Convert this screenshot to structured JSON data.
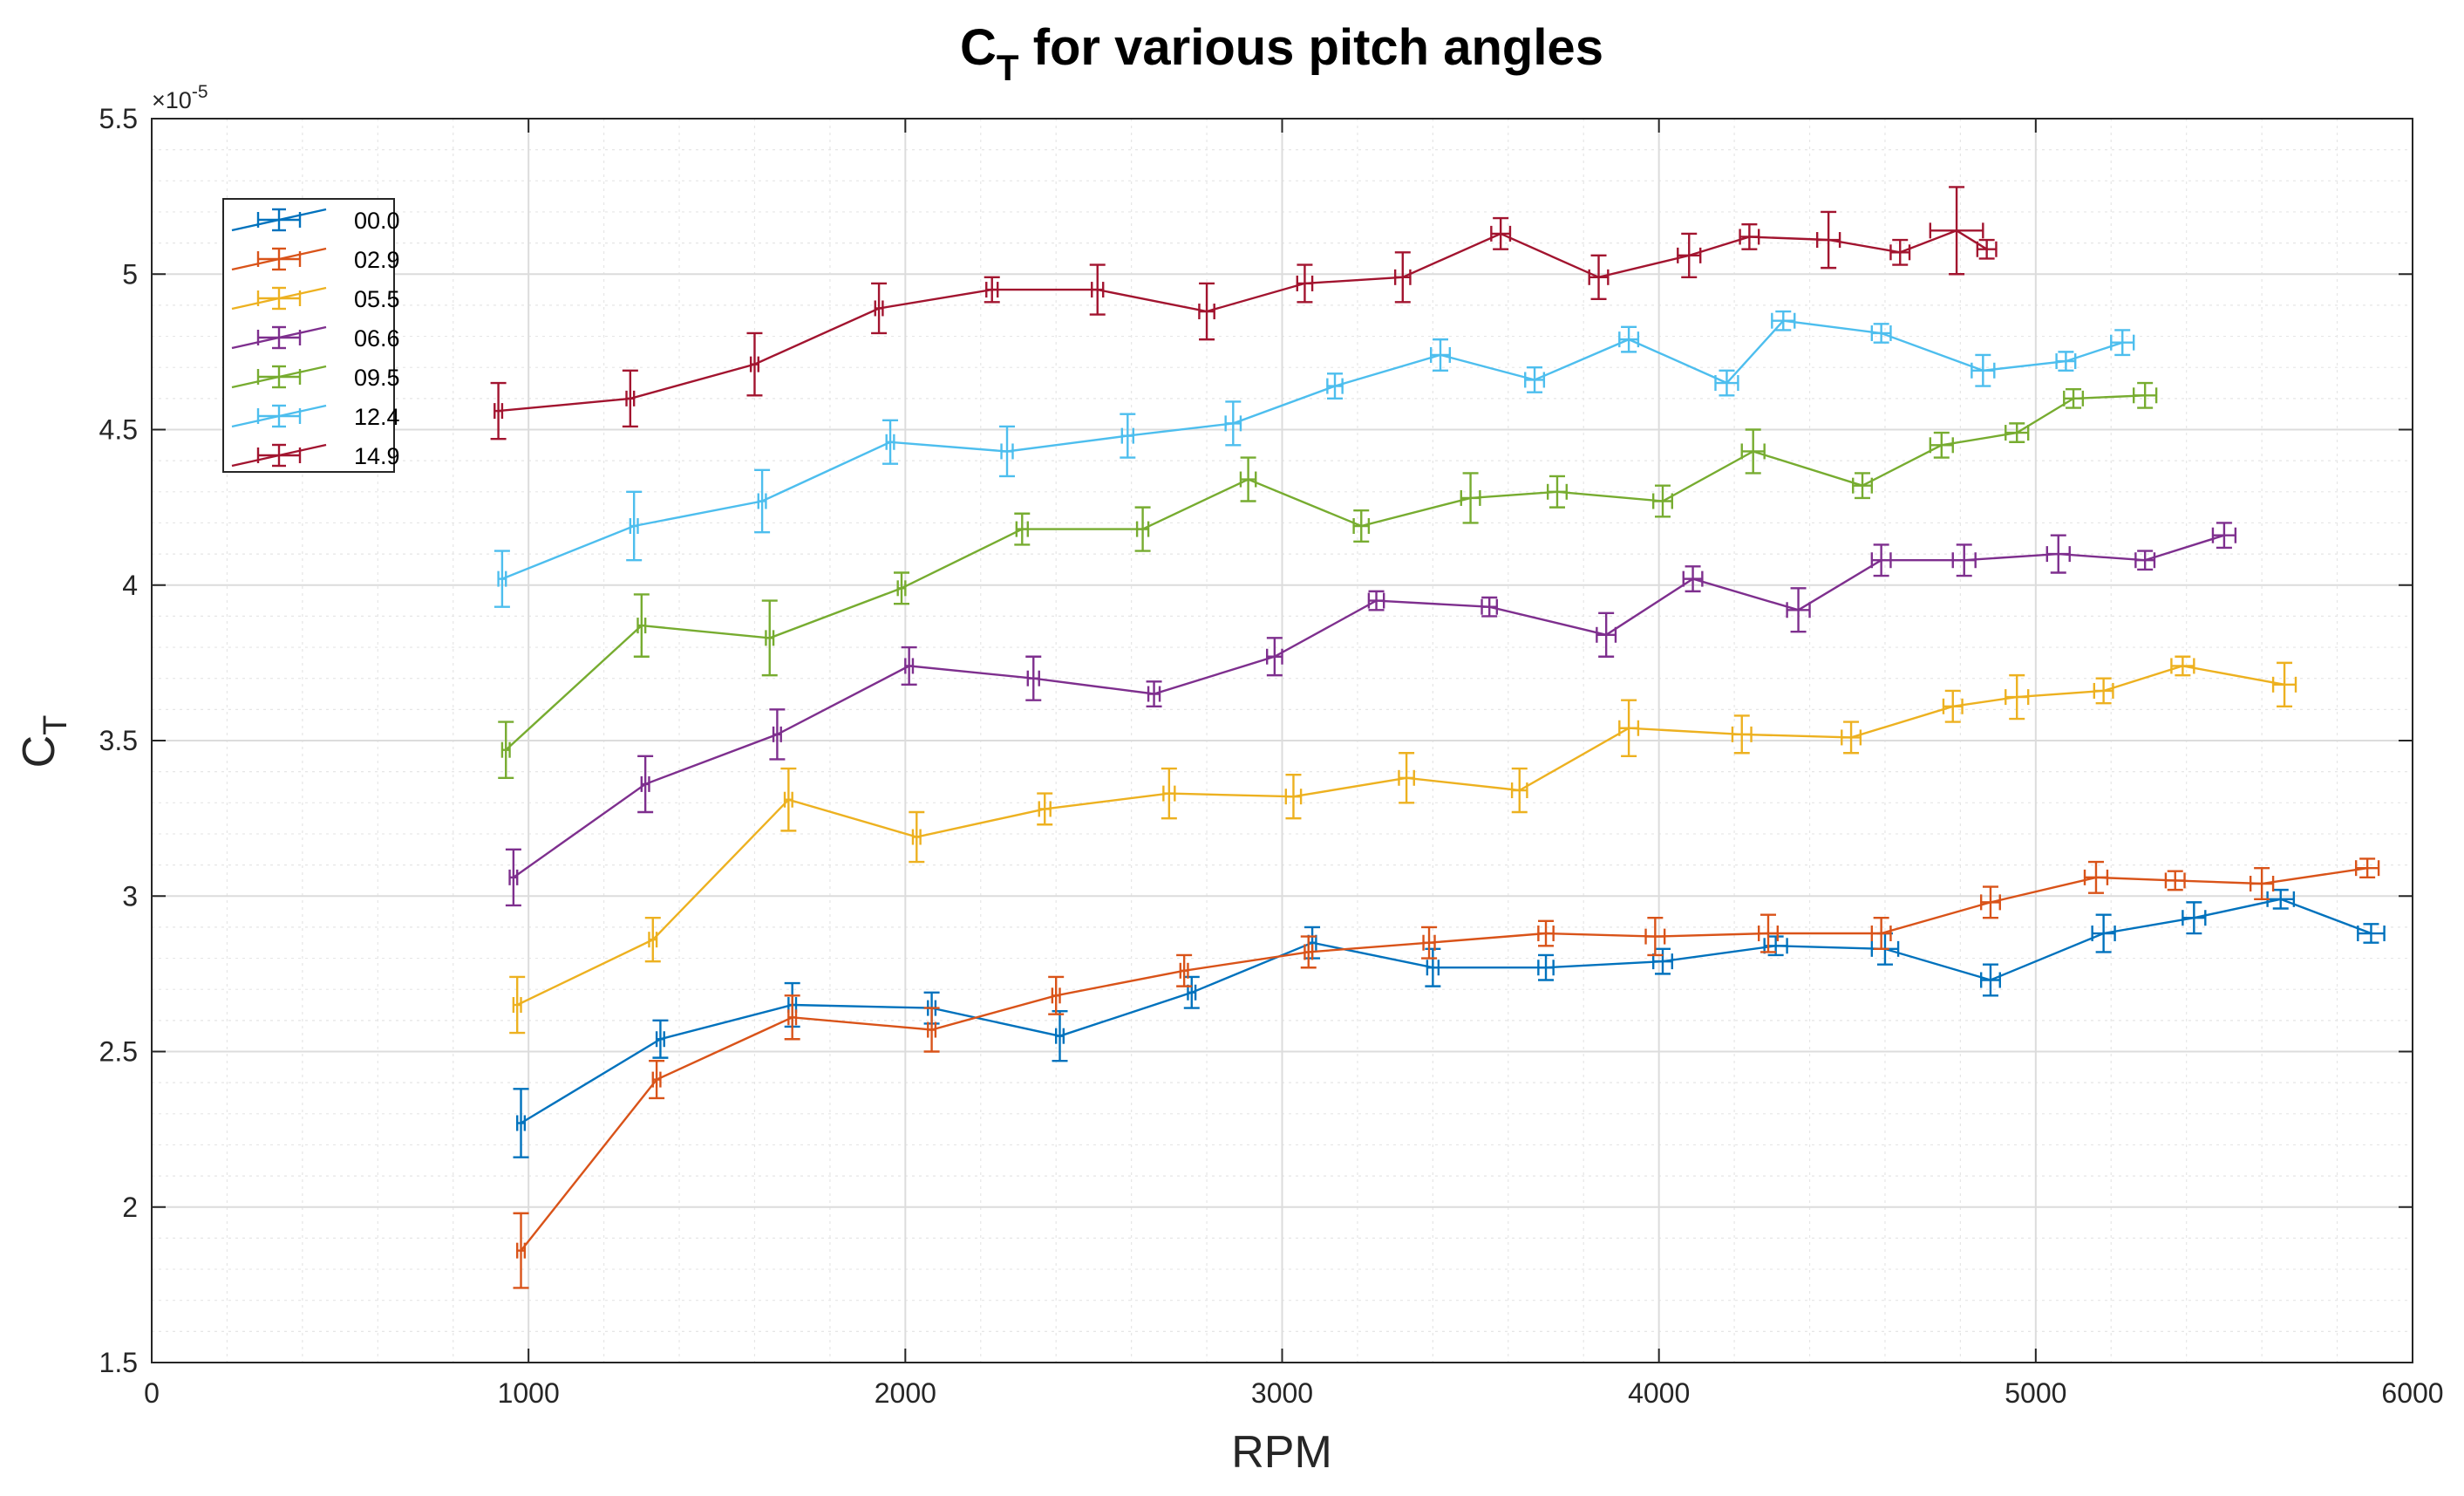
{
  "chart_data": {
    "type": "line",
    "title": "C",
    "title_subscript": "T",
    "title_rest": " for various pitch angles",
    "xlabel": "RPM",
    "ylabel": "C",
    "ylabel_subscript": "T",
    "xlim": [
      0,
      6000
    ],
    "ylim": [
      1.5,
      5.5
    ],
    "y_exponent_prefix": "×",
    "y_exponent_base": "10",
    "y_exponent_power": "-5",
    "x_ticks": [
      0,
      1000,
      2000,
      3000,
      4000,
      5000,
      6000
    ],
    "x_tick_labels": [
      "0",
      "1000",
      "2000",
      "3000",
      "4000",
      "5000",
      "6000"
    ],
    "y_ticks": [
      1.5,
      2,
      2.5,
      3,
      3.5,
      4,
      4.5,
      5,
      5.5
    ],
    "y_tick_labels": [
      "1.5",
      "2",
      "2.5",
      "3",
      "3.5",
      "4",
      "4.5",
      "5",
      "5.5"
    ],
    "grid": true,
    "minor_grid": true,
    "legend_position": "top-left",
    "series": [
      {
        "name": "00.0",
        "color": "#0072BD",
        "x": [
          980,
          1350,
          1700,
          2070,
          2410,
          2760,
          3080,
          3400,
          3700,
          4010,
          4310,
          4600,
          4880,
          5180,
          5420,
          5650,
          5890
        ],
        "y": [
          2.27,
          2.54,
          2.65,
          2.64,
          2.55,
          2.69,
          2.85,
          2.77,
          2.77,
          2.79,
          2.84,
          2.83,
          2.73,
          2.88,
          2.93,
          2.99,
          2.88
        ],
        "yerr": [
          0.11,
          0.06,
          0.07,
          0.05,
          0.08,
          0.05,
          0.05,
          0.06,
          0.04,
          0.04,
          0.03,
          0.05,
          0.05,
          0.06,
          0.05,
          0.03,
          0.03
        ],
        "xerr": [
          10,
          10,
          10,
          10,
          10,
          10,
          10,
          15,
          20,
          25,
          30,
          35,
          25,
          30,
          30,
          35,
          35
        ]
      },
      {
        "name": "02.9",
        "color": "#D95319",
        "x": [
          980,
          1340,
          1700,
          2070,
          2400,
          2740,
          3070,
          3390,
          3700,
          3990,
          4290,
          4590,
          4880,
          5160,
          5370,
          5600,
          5880
        ],
        "y": [
          1.86,
          2.41,
          2.61,
          2.57,
          2.68,
          2.76,
          2.82,
          2.85,
          2.88,
          2.87,
          2.88,
          2.88,
          2.98,
          3.06,
          3.05,
          3.04,
          3.09
        ],
        "yerr": [
          0.12,
          0.06,
          0.07,
          0.07,
          0.06,
          0.05,
          0.05,
          0.05,
          0.04,
          0.06,
          0.06,
          0.05,
          0.05,
          0.05,
          0.03,
          0.05,
          0.03
        ],
        "xerr": [
          10,
          10,
          10,
          10,
          10,
          10,
          10,
          15,
          20,
          25,
          25,
          25,
          25,
          30,
          25,
          30,
          30
        ]
      },
      {
        "name": "05.5",
        "color": "#EDB120",
        "x": [
          970,
          1330,
          1690,
          2030,
          2370,
          2700,
          3030,
          3330,
          3630,
          3920,
          4220,
          4510,
          4780,
          4950,
          5180,
          5390,
          5660
        ],
        "y": [
          2.65,
          2.86,
          3.31,
          3.19,
          3.28,
          3.33,
          3.32,
          3.38,
          3.34,
          3.54,
          3.52,
          3.51,
          3.61,
          3.64,
          3.66,
          3.74,
          3.68
        ],
        "yerr": [
          0.09,
          0.07,
          0.1,
          0.08,
          0.05,
          0.08,
          0.07,
          0.08,
          0.07,
          0.09,
          0.06,
          0.05,
          0.05,
          0.07,
          0.04,
          0.03,
          0.07
        ],
        "xerr": [
          10,
          10,
          10,
          10,
          15,
          15,
          20,
          20,
          20,
          25,
          25,
          25,
          25,
          30,
          25,
          30,
          30
        ]
      },
      {
        "name": "06.6",
        "color": "#7E2F8E",
        "x": [
          960,
          1310,
          1660,
          2010,
          2340,
          2660,
          2980,
          3250,
          3550,
          3860,
          4090,
          4370,
          4590,
          4810,
          5060,
          5290,
          5500
        ],
        "y": [
          3.06,
          3.36,
          3.52,
          3.74,
          3.7,
          3.65,
          3.77,
          3.95,
          3.93,
          3.84,
          4.02,
          3.92,
          4.08,
          4.08,
          4.1,
          4.08,
          4.16
        ],
        "yerr": [
          0.09,
          0.09,
          0.08,
          0.06,
          0.07,
          0.04,
          0.06,
          0.03,
          0.03,
          0.07,
          0.04,
          0.07,
          0.05,
          0.05,
          0.06,
          0.03,
          0.04
        ],
        "xerr": [
          10,
          10,
          10,
          10,
          15,
          15,
          20,
          20,
          20,
          25,
          25,
          30,
          25,
          30,
          30,
          25,
          30
        ]
      },
      {
        "name": "09.5",
        "color": "#77AC30",
        "x": [
          940,
          1300,
          1640,
          1990,
          2310,
          2630,
          2910,
          3210,
          3500,
          3730,
          4010,
          4250,
          4540,
          4750,
          4950,
          5100,
          5290
        ],
        "y": [
          3.47,
          3.87,
          3.83,
          3.99,
          4.18,
          4.18,
          4.34,
          4.19,
          4.28,
          4.3,
          4.27,
          4.43,
          4.32,
          4.45,
          4.49,
          4.6,
          4.61
        ],
        "yerr": [
          0.09,
          0.1,
          0.12,
          0.05,
          0.05,
          0.07,
          0.07,
          0.05,
          0.08,
          0.05,
          0.05,
          0.07,
          0.04,
          0.04,
          0.03,
          0.03,
          0.04
        ],
        "xerr": [
          10,
          10,
          10,
          10,
          15,
          15,
          20,
          20,
          25,
          25,
          25,
          30,
          25,
          30,
          30,
          25,
          30
        ]
      },
      {
        "name": "12.4",
        "color": "#4DBEEE",
        "x": [
          930,
          1280,
          1620,
          1960,
          2270,
          2590,
          2870,
          3140,
          3420,
          3670,
          3920,
          4180,
          4330,
          4590,
          4860,
          5080,
          5230
        ],
        "y": [
          4.02,
          4.19,
          4.27,
          4.46,
          4.43,
          4.48,
          4.52,
          4.64,
          4.74,
          4.66,
          4.79,
          4.65,
          4.85,
          4.81,
          4.69,
          4.72,
          4.78
        ],
        "yerr": [
          0.09,
          0.11,
          0.1,
          0.07,
          0.08,
          0.07,
          0.07,
          0.04,
          0.05,
          0.04,
          0.04,
          0.04,
          0.03,
          0.03,
          0.05,
          0.03,
          0.04
        ],
        "xerr": [
          10,
          10,
          10,
          10,
          15,
          15,
          20,
          20,
          25,
          25,
          25,
          30,
          30,
          25,
          30,
          25,
          30
        ]
      },
      {
        "name": "14.9",
        "color": "#A2142F",
        "x": [
          920,
          1270,
          1600,
          1930,
          2230,
          2510,
          2800,
          3060,
          3320,
          3580,
          3840,
          4080,
          4240,
          4450,
          4640,
          4790,
          4870
        ],
        "y": [
          4.56,
          4.6,
          4.71,
          4.89,
          4.95,
          4.95,
          4.88,
          4.97,
          4.99,
          5.13,
          4.99,
          5.06,
          5.12,
          5.11,
          5.07,
          5.14,
          5.08
        ],
        "yerr": [
          0.09,
          0.09,
          0.1,
          0.08,
          0.04,
          0.08,
          0.09,
          0.06,
          0.08,
          0.05,
          0.07,
          0.07,
          0.04,
          0.09,
          0.04,
          0.14,
          0.03
        ],
        "xerr": [
          10,
          10,
          10,
          10,
          15,
          15,
          20,
          20,
          20,
          25,
          25,
          30,
          25,
          30,
          25,
          70,
          25
        ]
      }
    ]
  }
}
